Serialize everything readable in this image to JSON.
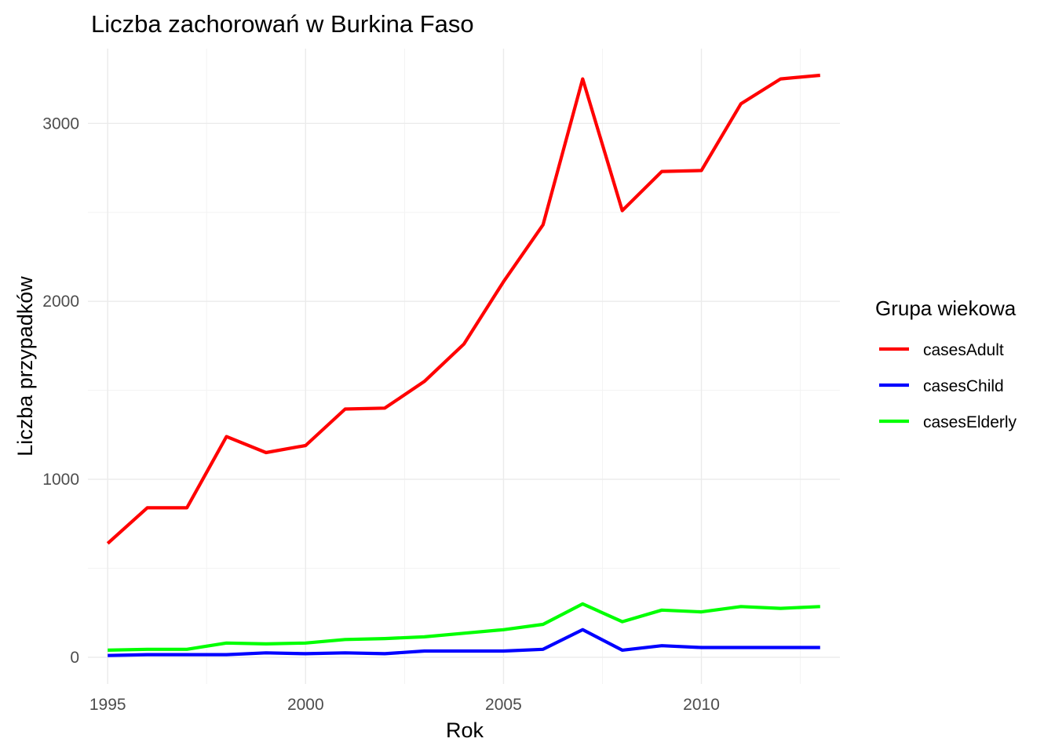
{
  "chart_data": {
    "type": "line",
    "title": "Liczba zachorowań w Burkina Faso",
    "xlabel": "Rok",
    "ylabel": "Liczba przypadków",
    "xlim": [
      1994.5,
      2013.5
    ],
    "ylim": [
      -150,
      3420
    ],
    "x_ticks": [
      1995,
      2000,
      2005,
      2010
    ],
    "y_ticks": [
      0,
      1000,
      2000,
      3000
    ],
    "grid": true,
    "legend": {
      "title": "Grupa wiekowa",
      "placement": "right"
    },
    "x": [
      1995,
      1996,
      1997,
      1998,
      1999,
      2000,
      2001,
      2002,
      2003,
      2004,
      2005,
      2006,
      2007,
      2008,
      2009,
      2010,
      2011,
      2012,
      2013
    ],
    "series": [
      {
        "name": "casesAdult",
        "color": "#ff0000",
        "values": [
          640,
          840,
          840,
          1240,
          1150,
          1190,
          1395,
          1400,
          1550,
          1760,
          2110,
          2430,
          3250,
          2510,
          2730,
          2735,
          3110,
          3250,
          3270
        ]
      },
      {
        "name": "casesChild",
        "color": "#0000ff",
        "values": [
          10,
          15,
          15,
          15,
          25,
          20,
          25,
          20,
          35,
          35,
          35,
          45,
          155,
          40,
          65,
          55,
          55,
          55,
          55
        ]
      },
      {
        "name": "casesElderly",
        "color": "#00ff00",
        "values": [
          40,
          45,
          45,
          80,
          75,
          80,
          100,
          105,
          115,
          135,
          155,
          185,
          300,
          200,
          265,
          255,
          285,
          275,
          285
        ]
      }
    ]
  }
}
